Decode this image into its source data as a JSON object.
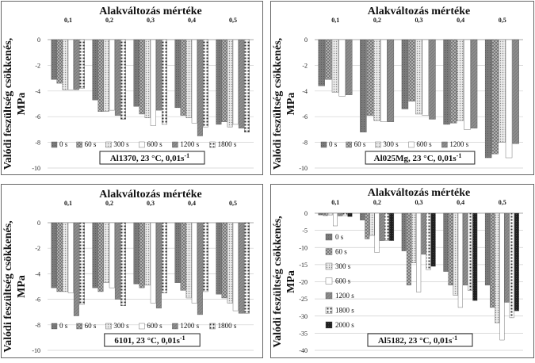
{
  "figure": {
    "x_axis_title": "Alakváltozás mértéke",
    "y_axis_title_line1": "Valódi feszültség csökkenés,",
    "y_axis_title_line2": "MPa",
    "legend_unit": "s"
  },
  "chart_data": [
    {
      "type": "bar",
      "title": "Al1370, 23 °C, 0,01s",
      "title_superscript": "-1",
      "xlabel": "Alakváltozás mértéke",
      "ylabel": "Valódi feszültség csökkenés, MPa",
      "categories": [
        "0,1",
        "0,2",
        "0,3",
        "0,4",
        "0,5"
      ],
      "ylim": [
        -10,
        0
      ],
      "yticks": [
        0,
        -2,
        -4,
        -6,
        -8,
        -10
      ],
      "series": [
        {
          "name": "0 s",
          "pattern": "dark",
          "values": [
            -3.1,
            -4.7,
            -5.2,
            -5.3,
            -6.6
          ]
        },
        {
          "name": "60 s",
          "pattern": "cross",
          "values": [
            -3.4,
            -5.6,
            -5.8,
            -5.9,
            -6.4
          ]
        },
        {
          "name": "300 s",
          "pattern": "dots",
          "values": [
            -3.9,
            -5.6,
            -6.1,
            -6.1,
            -6.8
          ]
        },
        {
          "name": "600 s",
          "pattern": "white",
          "values": [
            -3.9,
            -5.5,
            -6.7,
            -6.5,
            -6.6
          ]
        },
        {
          "name": "1200 s",
          "pattern": "gray",
          "values": [
            -3.9,
            -5.9,
            -5.5,
            -7.5,
            -6.9
          ]
        },
        {
          "name": "1800 s",
          "pattern": "grid",
          "values": [
            -3.8,
            -6.2,
            -6.6,
            -6.8,
            -7.2
          ]
        }
      ]
    },
    {
      "type": "bar",
      "title": "Al025Mg, 23 °C, 0,01s",
      "title_superscript": "-1",
      "xlabel": "Alakváltozás mértéke",
      "ylabel": "Valódi feszültség csökkenés, MPa",
      "categories": [
        "0,1",
        "0,2",
        "0,3",
        "0,4",
        "0,5"
      ],
      "ylim": [
        -10,
        0
      ],
      "yticks": [
        0,
        -2,
        -4,
        -6,
        -8,
        -10
      ],
      "series": [
        {
          "name": "0 s",
          "pattern": "dark",
          "values": [
            -3.6,
            -7.2,
            -5.4,
            -6.6,
            -9.2
          ]
        },
        {
          "name": "60 s",
          "pattern": "cross",
          "values": [
            -3.1,
            -5.9,
            -4.8,
            -6.5,
            -8.9
          ]
        },
        {
          "name": "300 s",
          "pattern": "dots",
          "values": [
            -4.1,
            -6.3,
            -5.8,
            -6.3,
            -8.0
          ]
        },
        {
          "name": "600 s",
          "pattern": "white",
          "values": [
            -4.4,
            -6.4,
            -5.9,
            -7.0,
            -9.2
          ]
        },
        {
          "name": "1200 s",
          "pattern": "gray",
          "values": [
            -4.3,
            -6.4,
            -6.2,
            -6.9,
            -8.1
          ]
        }
      ]
    },
    {
      "type": "bar",
      "title": "6101, 23 °C, 0,01s",
      "title_superscript": "-1",
      "xlabel": "Alakváltozás mértéke",
      "ylabel": "Valódi feszültség csökkenés, MPa",
      "categories": [
        "0,1",
        "0,2",
        "0,3",
        "0,4",
        "0,5"
      ],
      "ylim": [
        -10,
        0
      ],
      "yticks": [
        0,
        -2,
        -4,
        -6,
        -8,
        -10
      ],
      "series": [
        {
          "name": "0 s",
          "pattern": "dark",
          "values": [
            -5.1,
            -5.1,
            -4.8,
            -4.7,
            -5.6
          ]
        },
        {
          "name": "60 s",
          "pattern": "cross",
          "values": [
            -5.4,
            -5.4,
            -5.1,
            -5.3,
            -5.9
          ]
        },
        {
          "name": "300 s",
          "pattern": "dots",
          "values": [
            -5.4,
            -4.7,
            -4.9,
            -5.9,
            -6.3
          ]
        },
        {
          "name": "600 s",
          "pattern": "white",
          "values": [
            -5.5,
            -5.1,
            -6.3,
            -6.3,
            -6.9
          ]
        },
        {
          "name": "1200 s",
          "pattern": "gray",
          "values": [
            -7.3,
            -6.0,
            -6.7,
            -7.2,
            -7.1
          ]
        },
        {
          "name": "1800 s",
          "pattern": "grid",
          "values": [
            -6.4,
            -6.5,
            -5.5,
            -5.4,
            -7.1
          ]
        }
      ]
    },
    {
      "type": "bar",
      "title": "Al5182, 23 °C, 0,01s",
      "title_superscript": "-1",
      "xlabel": "Alakváltozás mértéke",
      "ylabel": "Valódi feszültség csökkenés, MPa",
      "categories": [
        "0,1",
        "0,2",
        "0,3",
        "0,4",
        "0,5"
      ],
      "ylim": [
        -40,
        0
      ],
      "yticks": [
        0,
        -5,
        -10,
        -15,
        -20,
        -25,
        -30,
        -35,
        -40
      ],
      "series": [
        {
          "name": "0 s",
          "pattern": "dark",
          "values": [
            -0.5,
            -2.0,
            -11.0,
            -17.0,
            -21.0
          ]
        },
        {
          "name": "60 s",
          "pattern": "cross",
          "values": [
            -0.7,
            -7.5,
            -21.0,
            -21.0,
            -27.5
          ]
        },
        {
          "name": "300 s",
          "pattern": "dots",
          "values": [
            -0.5,
            -6.5,
            -14.5,
            -24.0,
            -32.0
          ]
        },
        {
          "name": "600 s",
          "pattern": "white",
          "values": [
            -3.7,
            -11.5,
            -23.0,
            -27.5,
            -37.0
          ]
        },
        {
          "name": "1200 s",
          "pattern": "gray",
          "values": [
            -0.8,
            -8.0,
            -12.0,
            -21.0,
            -26.0
          ]
        },
        {
          "name": "1800 s",
          "pattern": "grid",
          "values": [
            -0.7,
            -8.0,
            -16.5,
            -22.5,
            -30.5
          ]
        },
        {
          "name": "2000 s",
          "pattern": "black",
          "values": [
            -1.0,
            -8.0,
            -15.5,
            -25.5,
            -28.5
          ]
        }
      ]
    }
  ]
}
